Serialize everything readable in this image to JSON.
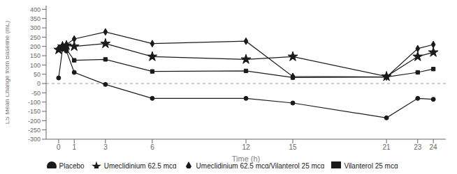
{
  "chart_data": {
    "type": "line",
    "x": [
      0,
      0.25,
      0.5,
      1,
      3,
      6,
      12,
      15,
      21,
      23,
      24
    ],
    "series": [
      {
        "name": "Placebo",
        "color": "#1a1a1a",
        "marker": "circle",
        "values": [
          30,
          185,
          175,
          60,
          -5,
          -80,
          -80,
          -105,
          -185,
          -80,
          -85
        ]
      },
      {
        "name": "Vilanterol 25 mcg",
        "color": "#1a1a1a",
        "marker": "square",
        "values": [
          185,
          190,
          185,
          125,
          130,
          65,
          68,
          32,
          35,
          60,
          78
        ]
      },
      {
        "name": "Umeclidinium 62.5 mcg",
        "color": "#1a1a1a",
        "marker": "star",
        "values": [
          182,
          200,
          205,
          200,
          215,
          145,
          130,
          145,
          38,
          145,
          168
        ]
      },
      {
        "name": "Umeclidinium 62.5 mcg/Vilanterol 25 mcg",
        "color": "#1a1a1a",
        "marker": "diamond",
        "values": [
          188,
          205,
          210,
          240,
          278,
          215,
          228,
          38,
          35,
          188,
          210
        ]
      }
    ],
    "xlabel": "Time (h)",
    "ylabel": "LS Mean Change from Baseline (mL)",
    "xlim": [
      -0.8,
      24.8
    ],
    "xticks": [
      0,
      1,
      3,
      6,
      12,
      15,
      21,
      23,
      24
    ],
    "ylim": [
      -300,
      420
    ],
    "yticks": [
      -300,
      -250,
      -200,
      -150,
      -100,
      -50,
      0,
      50,
      100,
      150,
      200,
      250,
      300,
      350,
      400
    ],
    "hline": 0,
    "grid": false,
    "legend": "bottom"
  }
}
